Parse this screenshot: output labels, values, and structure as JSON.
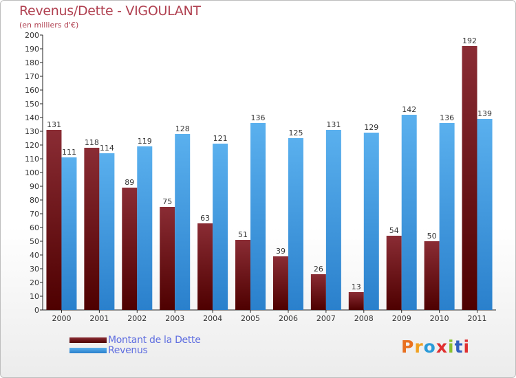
{
  "title": "Revenus/Dette - VIGOULANT",
  "subtitle": "(en milliers d'€)",
  "logo": {
    "text": "Proxiti",
    "colors": [
      "#e87020",
      "#f0a020",
      "#2a9ad8",
      "#e03030",
      "#8ac030",
      "#3060c0",
      "#e03030"
    ]
  },
  "colors": {
    "dette_top": "#8a2c34",
    "dette_bottom": "#4e0000",
    "revenus_top": "#5ab0ee",
    "revenus_bottom": "#2a80cc",
    "text": "#333333",
    "title": "#b04050",
    "legend_text": "#5f6ee0"
  },
  "chart_data": {
    "type": "bar",
    "title": "Revenus/Dette - VIGOULANT",
    "ylabel": "(en milliers d'€)",
    "xlabel": "",
    "categories": [
      "2000",
      "2001",
      "2002",
      "2003",
      "2004",
      "2005",
      "2006",
      "2007",
      "2008",
      "2009",
      "2010",
      "2011"
    ],
    "series": [
      {
        "name": "Montant de la Dette",
        "values": [
          131,
          118,
          89,
          75,
          63,
          51,
          39,
          26,
          13,
          54,
          50,
          192
        ]
      },
      {
        "name": "Revenus",
        "values": [
          111,
          114,
          119,
          128,
          121,
          136,
          125,
          131,
          129,
          142,
          136,
          139
        ]
      }
    ],
    "ylim": [
      0,
      200
    ],
    "ytick_step": 10,
    "grid": false,
    "legend_position": "bottom-left"
  }
}
